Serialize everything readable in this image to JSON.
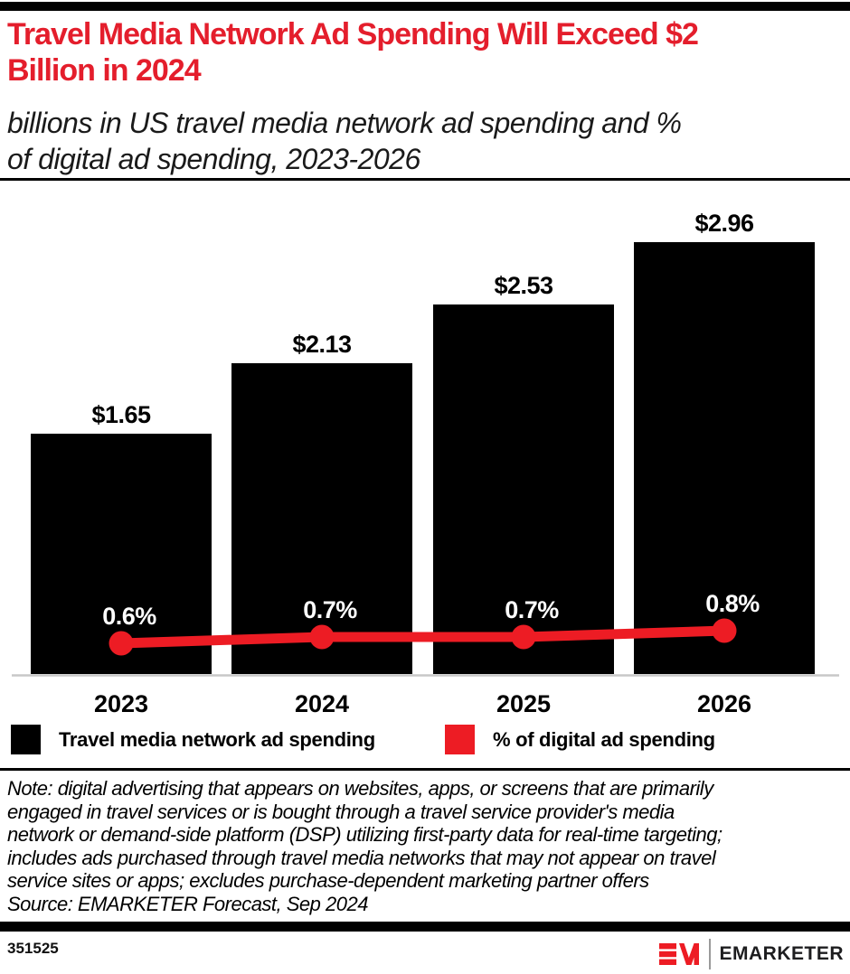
{
  "header": {
    "title": "Travel Media Network Ad Spending Will Exceed $2\nBillion in 2024",
    "subtitle": "billions in US travel media network ad spending and %\nof digital ad spending, 2023-2026"
  },
  "chart_data": {
    "type": "combo",
    "categories": [
      "2023",
      "2024",
      "2025",
      "2026"
    ],
    "series": [
      {
        "name": "Travel media network ad spending",
        "type": "bar",
        "unit": "USD billions",
        "color": "#000000",
        "values": [
          1.65,
          2.13,
          2.53,
          2.96
        ],
        "labels": [
          "$1.65",
          "$2.13",
          "$2.53",
          "$2.96"
        ]
      },
      {
        "name": "% of digital ad spending",
        "type": "line",
        "unit": "% of digital ad spending",
        "color": "#ed1c24",
        "values": [
          0.6,
          0.7,
          0.7,
          0.8
        ],
        "labels": [
          "0.6%",
          "0.7%",
          "0.7%",
          "0.8%"
        ]
      }
    ],
    "title": "Travel Media Network Ad Spending Will Exceed $2 Billion in 2024",
    "xlabel": "",
    "ylabel": "",
    "grid": false,
    "legend_position": "bottom",
    "value_labels_shown": true
  },
  "legend": {
    "items": [
      {
        "label": "Travel media network ad spending",
        "color": "#000000"
      },
      {
        "label": "% of digital ad spending",
        "color": "#ed1c24"
      }
    ]
  },
  "footer": {
    "note": "Note: digital advertising that appears on websites, apps, or screens that are primarily\nengaged in travel services or is bought through a travel service provider's media\nnetwork or demand-side platform (DSP) utilizing first-party data for real-time targeting;\nincludes ads purchased through travel media networks that may not appear on travel\nservice sites or apps; excludes purchase-dependent marketing partner offers",
    "source": "Source: EMARKETER Forecast, Sep 2024",
    "chart_id": "351525",
    "logo_text": "EMARKETER"
  },
  "colors": {
    "brand_red": "#ed1c24",
    "title_red": "#e41e2c",
    "bar_black": "#000000",
    "baseline_gray": "#c8c8c8",
    "pct_label_white": "#ffffff"
  }
}
